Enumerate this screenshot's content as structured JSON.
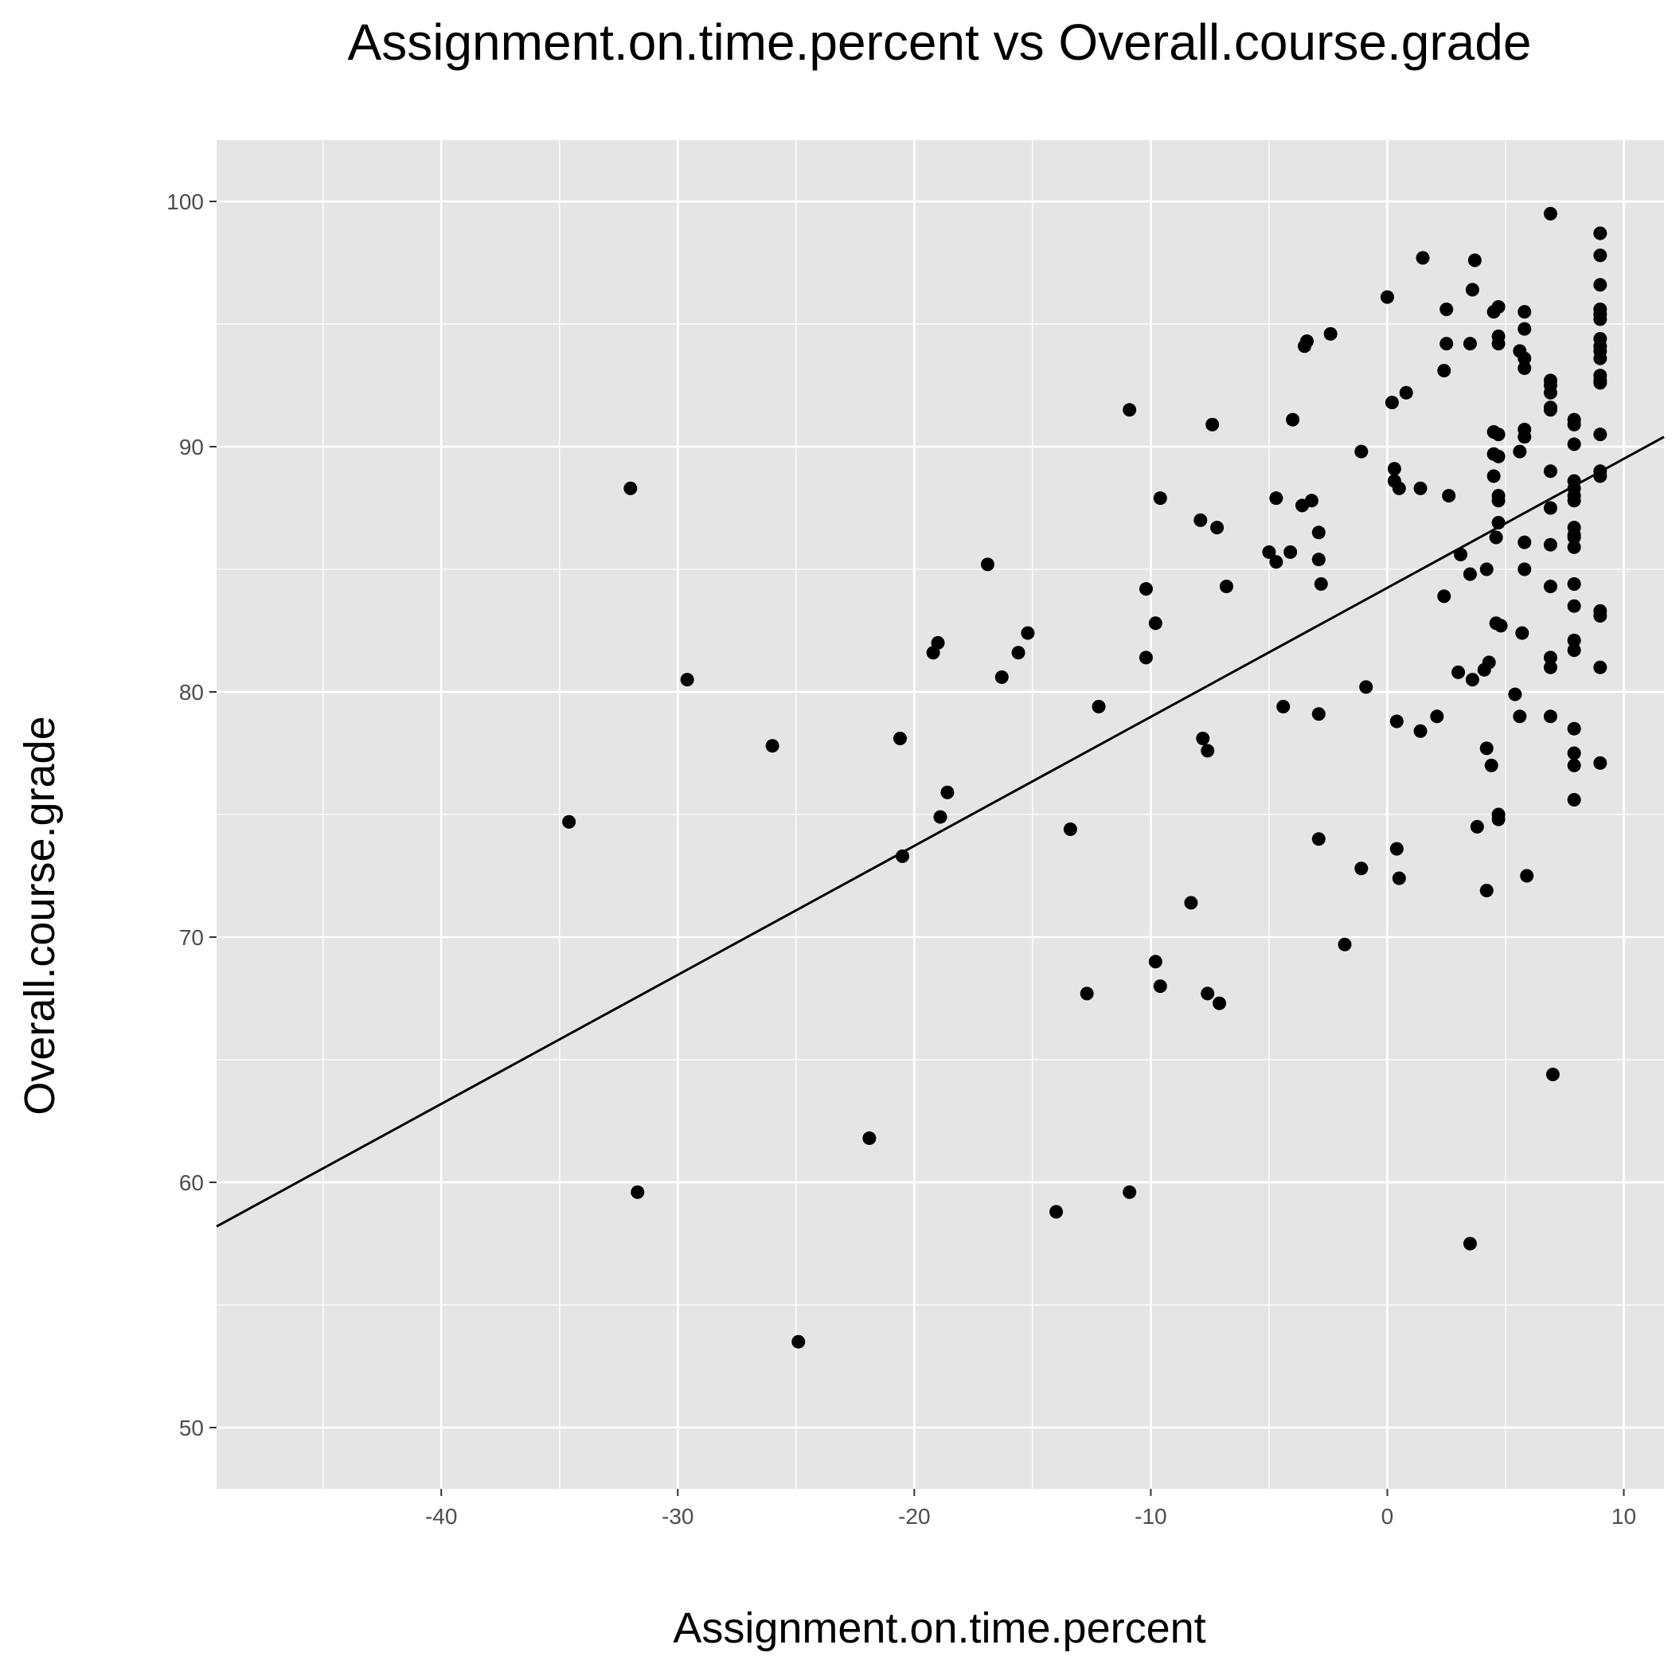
{
  "chart_data": {
    "type": "scatter",
    "title": "Assignment.on.time.percent vs Overall.course.grade",
    "xlabel": "Assignment.on.time.percent",
    "ylabel": "Overall.course.grade",
    "xlim": [
      -49.5,
      11.7
    ],
    "ylim": [
      47.5,
      102.5
    ],
    "x_ticks": [
      -40,
      -30,
      -20,
      -10,
      0,
      10
    ],
    "y_ticks": [
      50,
      60,
      70,
      80,
      90,
      100
    ],
    "x_tick_labels": [
      "-40",
      "-30",
      "-20",
      "-10",
      "0",
      "10"
    ],
    "y_tick_labels": [
      "50",
      "60",
      "70",
      "80",
      "90",
      "100"
    ],
    "grid": true,
    "legend": "none",
    "colors": {
      "panel_background": "#e5e5e5",
      "grid": "#ffffff",
      "points": "#000000",
      "trend_line": "#000000",
      "tick_labels": "#4d4d4d"
    },
    "trend_line": {
      "x": [
        -49.5,
        11.7
      ],
      "y": [
        58.2,
        90.4
      ]
    },
    "points": [
      [
        -34.6,
        74.7
      ],
      [
        -32.0,
        88.3
      ],
      [
        -31.7,
        59.6
      ],
      [
        -29.6,
        80.5
      ],
      [
        -26.0,
        77.8
      ],
      [
        -24.9,
        53.5
      ],
      [
        -21.9,
        61.8
      ],
      [
        -20.6,
        78.1
      ],
      [
        -20.5,
        73.3
      ],
      [
        -19.2,
        81.6
      ],
      [
        -19.0,
        82.0
      ],
      [
        -18.9,
        74.9
      ],
      [
        -18.6,
        75.9
      ],
      [
        -16.9,
        85.2
      ],
      [
        -16.3,
        80.6
      ],
      [
        -15.6,
        81.6
      ],
      [
        -15.2,
        82.4
      ],
      [
        -14.0,
        58.8
      ],
      [
        -13.4,
        74.4
      ],
      [
        -12.7,
        67.7
      ],
      [
        -12.2,
        79.4
      ],
      [
        -10.9,
        91.5
      ],
      [
        -10.9,
        59.6
      ],
      [
        -10.2,
        84.2
      ],
      [
        -10.2,
        81.4
      ],
      [
        -9.8,
        82.8
      ],
      [
        -9.8,
        69.0
      ],
      [
        -9.6,
        87.9
      ],
      [
        -9.6,
        68.0
      ],
      [
        -8.3,
        71.4
      ],
      [
        -7.9,
        87.0
      ],
      [
        -7.8,
        78.1
      ],
      [
        -7.6,
        77.6
      ],
      [
        -7.6,
        67.7
      ],
      [
        -7.4,
        90.9
      ],
      [
        -7.2,
        86.7
      ],
      [
        -7.1,
        67.3
      ],
      [
        -6.8,
        84.3
      ],
      [
        -5.0,
        85.7
      ],
      [
        -4.7,
        87.9
      ],
      [
        -4.7,
        85.3
      ],
      [
        -4.4,
        79.4
      ],
      [
        -4.1,
        85.7
      ],
      [
        -4.0,
        91.1
      ],
      [
        -3.6,
        87.6
      ],
      [
        -3.5,
        94.1
      ],
      [
        -3.4,
        94.3
      ],
      [
        -3.2,
        87.8
      ],
      [
        -2.9,
        86.5
      ],
      [
        -2.9,
        85.4
      ],
      [
        -2.9,
        79.1
      ],
      [
        -2.9,
        74.0
      ],
      [
        -2.8,
        84.4
      ],
      [
        -2.4,
        94.6
      ],
      [
        -1.8,
        69.7
      ],
      [
        -1.1,
        89.8
      ],
      [
        -1.1,
        72.8
      ],
      [
        -0.9,
        80.2
      ],
      [
        0.0,
        96.1
      ],
      [
        0.2,
        91.8
      ],
      [
        0.3,
        89.1
      ],
      [
        0.3,
        88.6
      ],
      [
        0.4,
        78.8
      ],
      [
        0.4,
        73.6
      ],
      [
        0.5,
        88.3
      ],
      [
        0.5,
        72.4
      ],
      [
        0.8,
        92.2
      ],
      [
        1.4,
        88.3
      ],
      [
        1.4,
        78.4
      ],
      [
        1.5,
        97.7
      ],
      [
        2.1,
        79.0
      ],
      [
        2.4,
        93.1
      ],
      [
        2.4,
        83.9
      ],
      [
        2.5,
        95.6
      ],
      [
        2.5,
        94.2
      ],
      [
        2.6,
        88.0
      ],
      [
        3.0,
        80.8
      ],
      [
        3.1,
        85.6
      ],
      [
        3.5,
        94.2
      ],
      [
        3.5,
        84.8
      ],
      [
        3.5,
        57.5
      ],
      [
        3.6,
        96.4
      ],
      [
        3.6,
        80.5
      ],
      [
        3.7,
        97.6
      ],
      [
        3.8,
        74.5
      ],
      [
        4.1,
        80.9
      ],
      [
        4.2,
        85.0
      ],
      [
        4.2,
        77.7
      ],
      [
        4.2,
        71.9
      ],
      [
        4.3,
        81.2
      ],
      [
        4.4,
        77.0
      ],
      [
        4.5,
        95.5
      ],
      [
        4.5,
        90.6
      ],
      [
        4.5,
        89.7
      ],
      [
        4.5,
        88.8
      ],
      [
        4.6,
        86.3
      ],
      [
        4.6,
        82.8
      ],
      [
        4.7,
        95.7
      ],
      [
        4.7,
        94.5
      ],
      [
        4.7,
        94.2
      ],
      [
        4.7,
        90.5
      ],
      [
        4.7,
        89.6
      ],
      [
        4.7,
        88.0
      ],
      [
        4.7,
        87.8
      ],
      [
        4.7,
        86.9
      ],
      [
        4.7,
        75.0
      ],
      [
        4.7,
        74.8
      ],
      [
        4.8,
        82.7
      ],
      [
        5.4,
        79.9
      ],
      [
        5.6,
        93.9
      ],
      [
        5.6,
        89.8
      ],
      [
        5.6,
        79.0
      ],
      [
        5.7,
        82.4
      ],
      [
        5.8,
        95.5
      ],
      [
        5.8,
        94.8
      ],
      [
        5.8,
        93.6
      ],
      [
        5.8,
        93.2
      ],
      [
        5.8,
        90.7
      ],
      [
        5.8,
        90.4
      ],
      [
        5.8,
        86.1
      ],
      [
        5.8,
        85.0
      ],
      [
        5.9,
        72.5
      ],
      [
        6.9,
        99.5
      ],
      [
        6.9,
        92.7
      ],
      [
        6.9,
        92.5
      ],
      [
        6.9,
        92.2
      ],
      [
        6.9,
        91.6
      ],
      [
        6.9,
        91.5
      ],
      [
        6.9,
        89.0
      ],
      [
        6.9,
        87.5
      ],
      [
        6.9,
        86.0
      ],
      [
        6.9,
        84.3
      ],
      [
        6.9,
        81.4
      ],
      [
        6.9,
        81.0
      ],
      [
        6.9,
        79.0
      ],
      [
        7.0,
        64.4
      ],
      [
        7.9,
        91.1
      ],
      [
        7.9,
        90.9
      ],
      [
        7.9,
        90.1
      ],
      [
        7.9,
        88.6
      ],
      [
        7.9,
        88.3
      ],
      [
        7.9,
        88.0
      ],
      [
        7.9,
        87.8
      ],
      [
        7.9,
        86.7
      ],
      [
        7.9,
        86.4
      ],
      [
        7.9,
        86.3
      ],
      [
        7.9,
        85.9
      ],
      [
        7.9,
        84.4
      ],
      [
        7.9,
        83.5
      ],
      [
        7.9,
        82.1
      ],
      [
        7.9,
        81.7
      ],
      [
        7.9,
        78.5
      ],
      [
        7.9,
        77.5
      ],
      [
        7.9,
        77.0
      ],
      [
        7.9,
        75.6
      ],
      [
        9.0,
        98.7
      ],
      [
        9.0,
        97.8
      ],
      [
        9.0,
        96.6
      ],
      [
        9.0,
        95.6
      ],
      [
        9.0,
        95.4
      ],
      [
        9.0,
        95.2
      ],
      [
        9.0,
        94.4
      ],
      [
        9.0,
        94.1
      ],
      [
        9.0,
        93.9
      ],
      [
        9.0,
        93.6
      ],
      [
        9.0,
        92.9
      ],
      [
        9.0,
        92.7
      ],
      [
        9.0,
        92.6
      ],
      [
        9.0,
        90.5
      ],
      [
        9.0,
        89.0
      ],
      [
        9.0,
        88.8
      ],
      [
        9.0,
        83.3
      ],
      [
        9.0,
        83.1
      ],
      [
        9.0,
        81.0
      ],
      [
        9.0,
        77.1
      ]
    ]
  }
}
